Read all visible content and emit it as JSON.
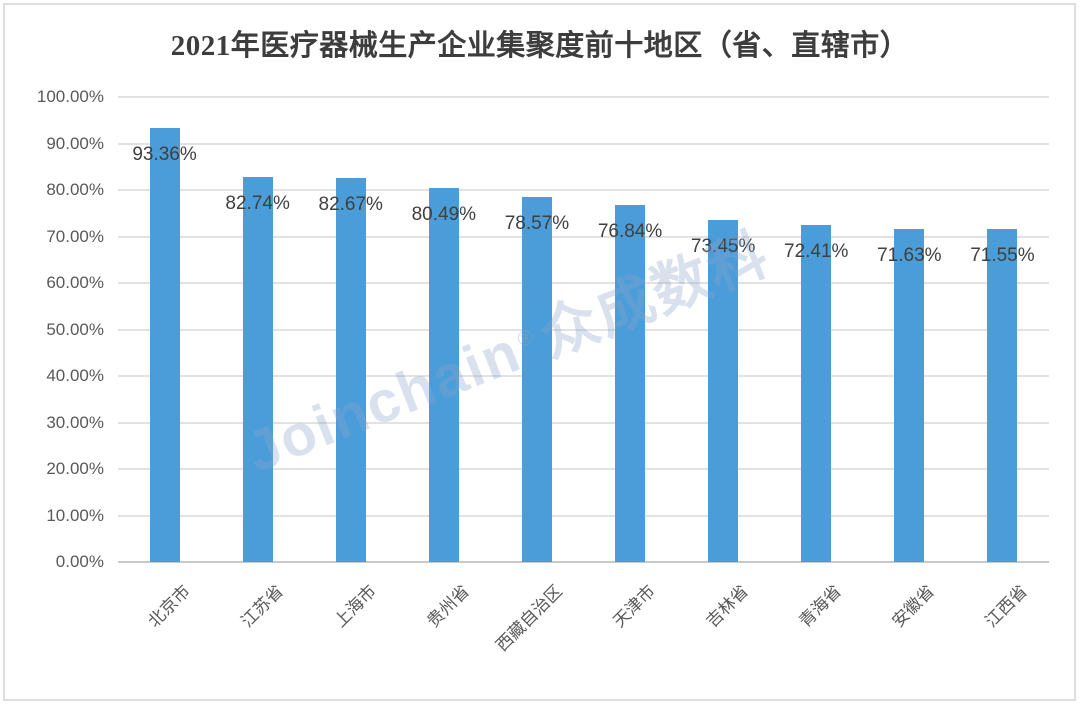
{
  "chart_data": {
    "type": "bar",
    "title": "2021年医疗器械生产企业集聚度前十地区（省、直辖市）",
    "categories": [
      "北京市",
      "江苏省",
      "上海市",
      "贵州省",
      "西藏自治区",
      "天津市",
      "吉林省",
      "青海省",
      "安徽省",
      "江西省"
    ],
    "values": [
      93.36,
      82.74,
      82.67,
      80.49,
      78.57,
      76.84,
      73.45,
      72.41,
      71.63,
      71.55
    ],
    "data_labels": [
      "93.36%",
      "82.74%",
      "82.67%",
      "80.49%",
      "78.57%",
      "76.84%",
      "73.45%",
      "72.41%",
      "71.63%",
      "71.55%"
    ],
    "xlabel": "",
    "ylabel": "",
    "ylim": [
      0,
      100
    ],
    "ytick_step": 10,
    "ytick_labels": [
      "0.00%",
      "10.00%",
      "20.00%",
      "30.00%",
      "40.00%",
      "50.00%",
      "60.00%",
      "70.00%",
      "80.00%",
      "90.00%",
      "100.00%"
    ],
    "grid": true,
    "legend": "none",
    "bar_color": "#4a9dd8"
  },
  "watermark": {
    "latin": "Joinchain",
    "registered": "®",
    "cjk": "众成数科"
  },
  "colors": {
    "bar": "#4a9dd8",
    "gridline": "#e2e2e2",
    "axis_line": "#c9c9c9",
    "tick_text": "#595959",
    "title_text": "#3d3d3d",
    "data_label_text": "#404040",
    "frame_border": "#dedede",
    "watermark_text": "rgba(143,164,204,0.33)"
  }
}
